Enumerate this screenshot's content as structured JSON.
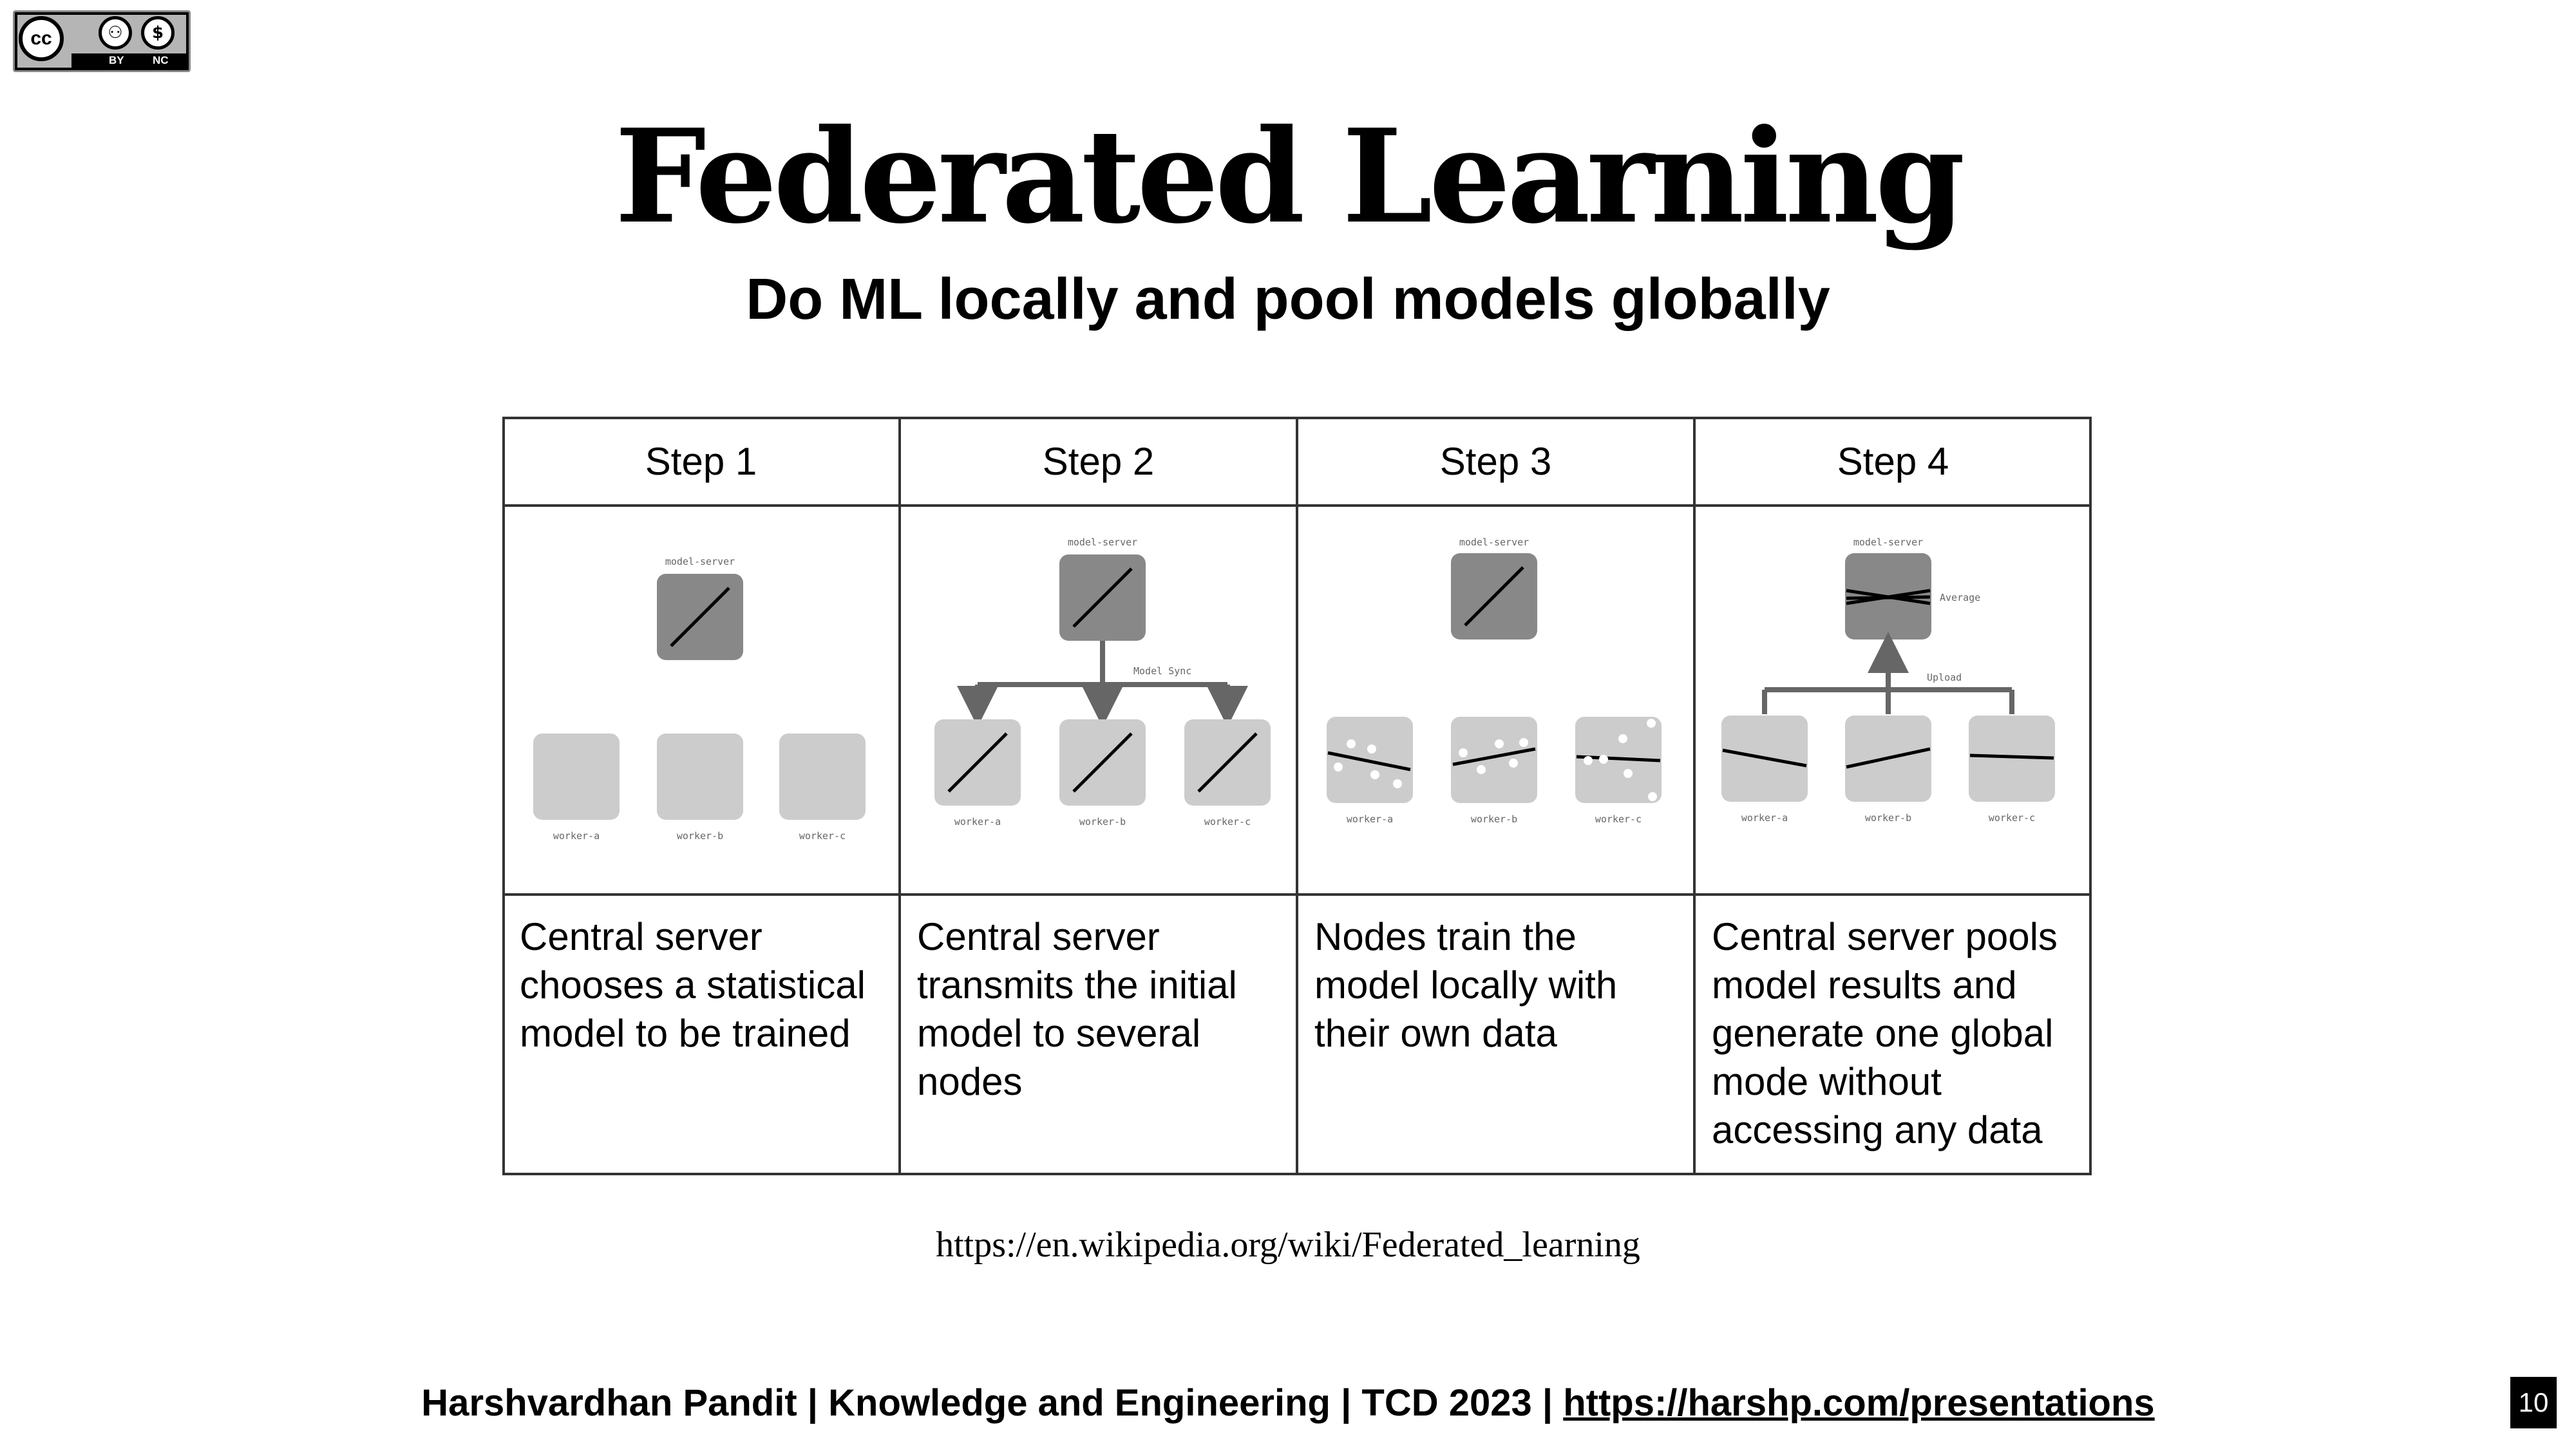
{
  "license": {
    "cc_label": "cc",
    "by_label": "BY",
    "nc_label": "NC",
    "icons": [
      "creative-commons-icon",
      "attribution-icon",
      "non-commercial-icon"
    ]
  },
  "slide": {
    "title": "Federated Learning",
    "subtitle": "Do ML locally and pool models globally"
  },
  "diagram": {
    "steps": [
      {
        "heading": "Step 1",
        "description": "Central server chooses a statistical model to be trained"
      },
      {
        "heading": "Step 2",
        "description": "Central server transmits the initial model to several nodes"
      },
      {
        "heading": "Step 3",
        "description": "Nodes train the model locally with their own data"
      },
      {
        "heading": "Step 4",
        "description": "Central server pools model results and generate one global mode without accessing any data"
      }
    ],
    "server_label": "model-server",
    "worker_labels": [
      "worker-a",
      "worker-b",
      "worker-c"
    ],
    "model_sync_label": "Model Sync",
    "upload_label": "Upload",
    "average_label": "Average",
    "colors": {
      "server_box": "#888888",
      "worker_box": "#cccccc",
      "arrow": "#666666",
      "grid_line": "#333333"
    }
  },
  "source_url": "https://en.wikipedia.org/wiki/Federated_learning",
  "footer": {
    "text": "Harshvardhan Pandit | Knowledge and Engineering | TCD 2023 | ",
    "link": "https://harshp.com/presentations"
  },
  "page_number": "10"
}
